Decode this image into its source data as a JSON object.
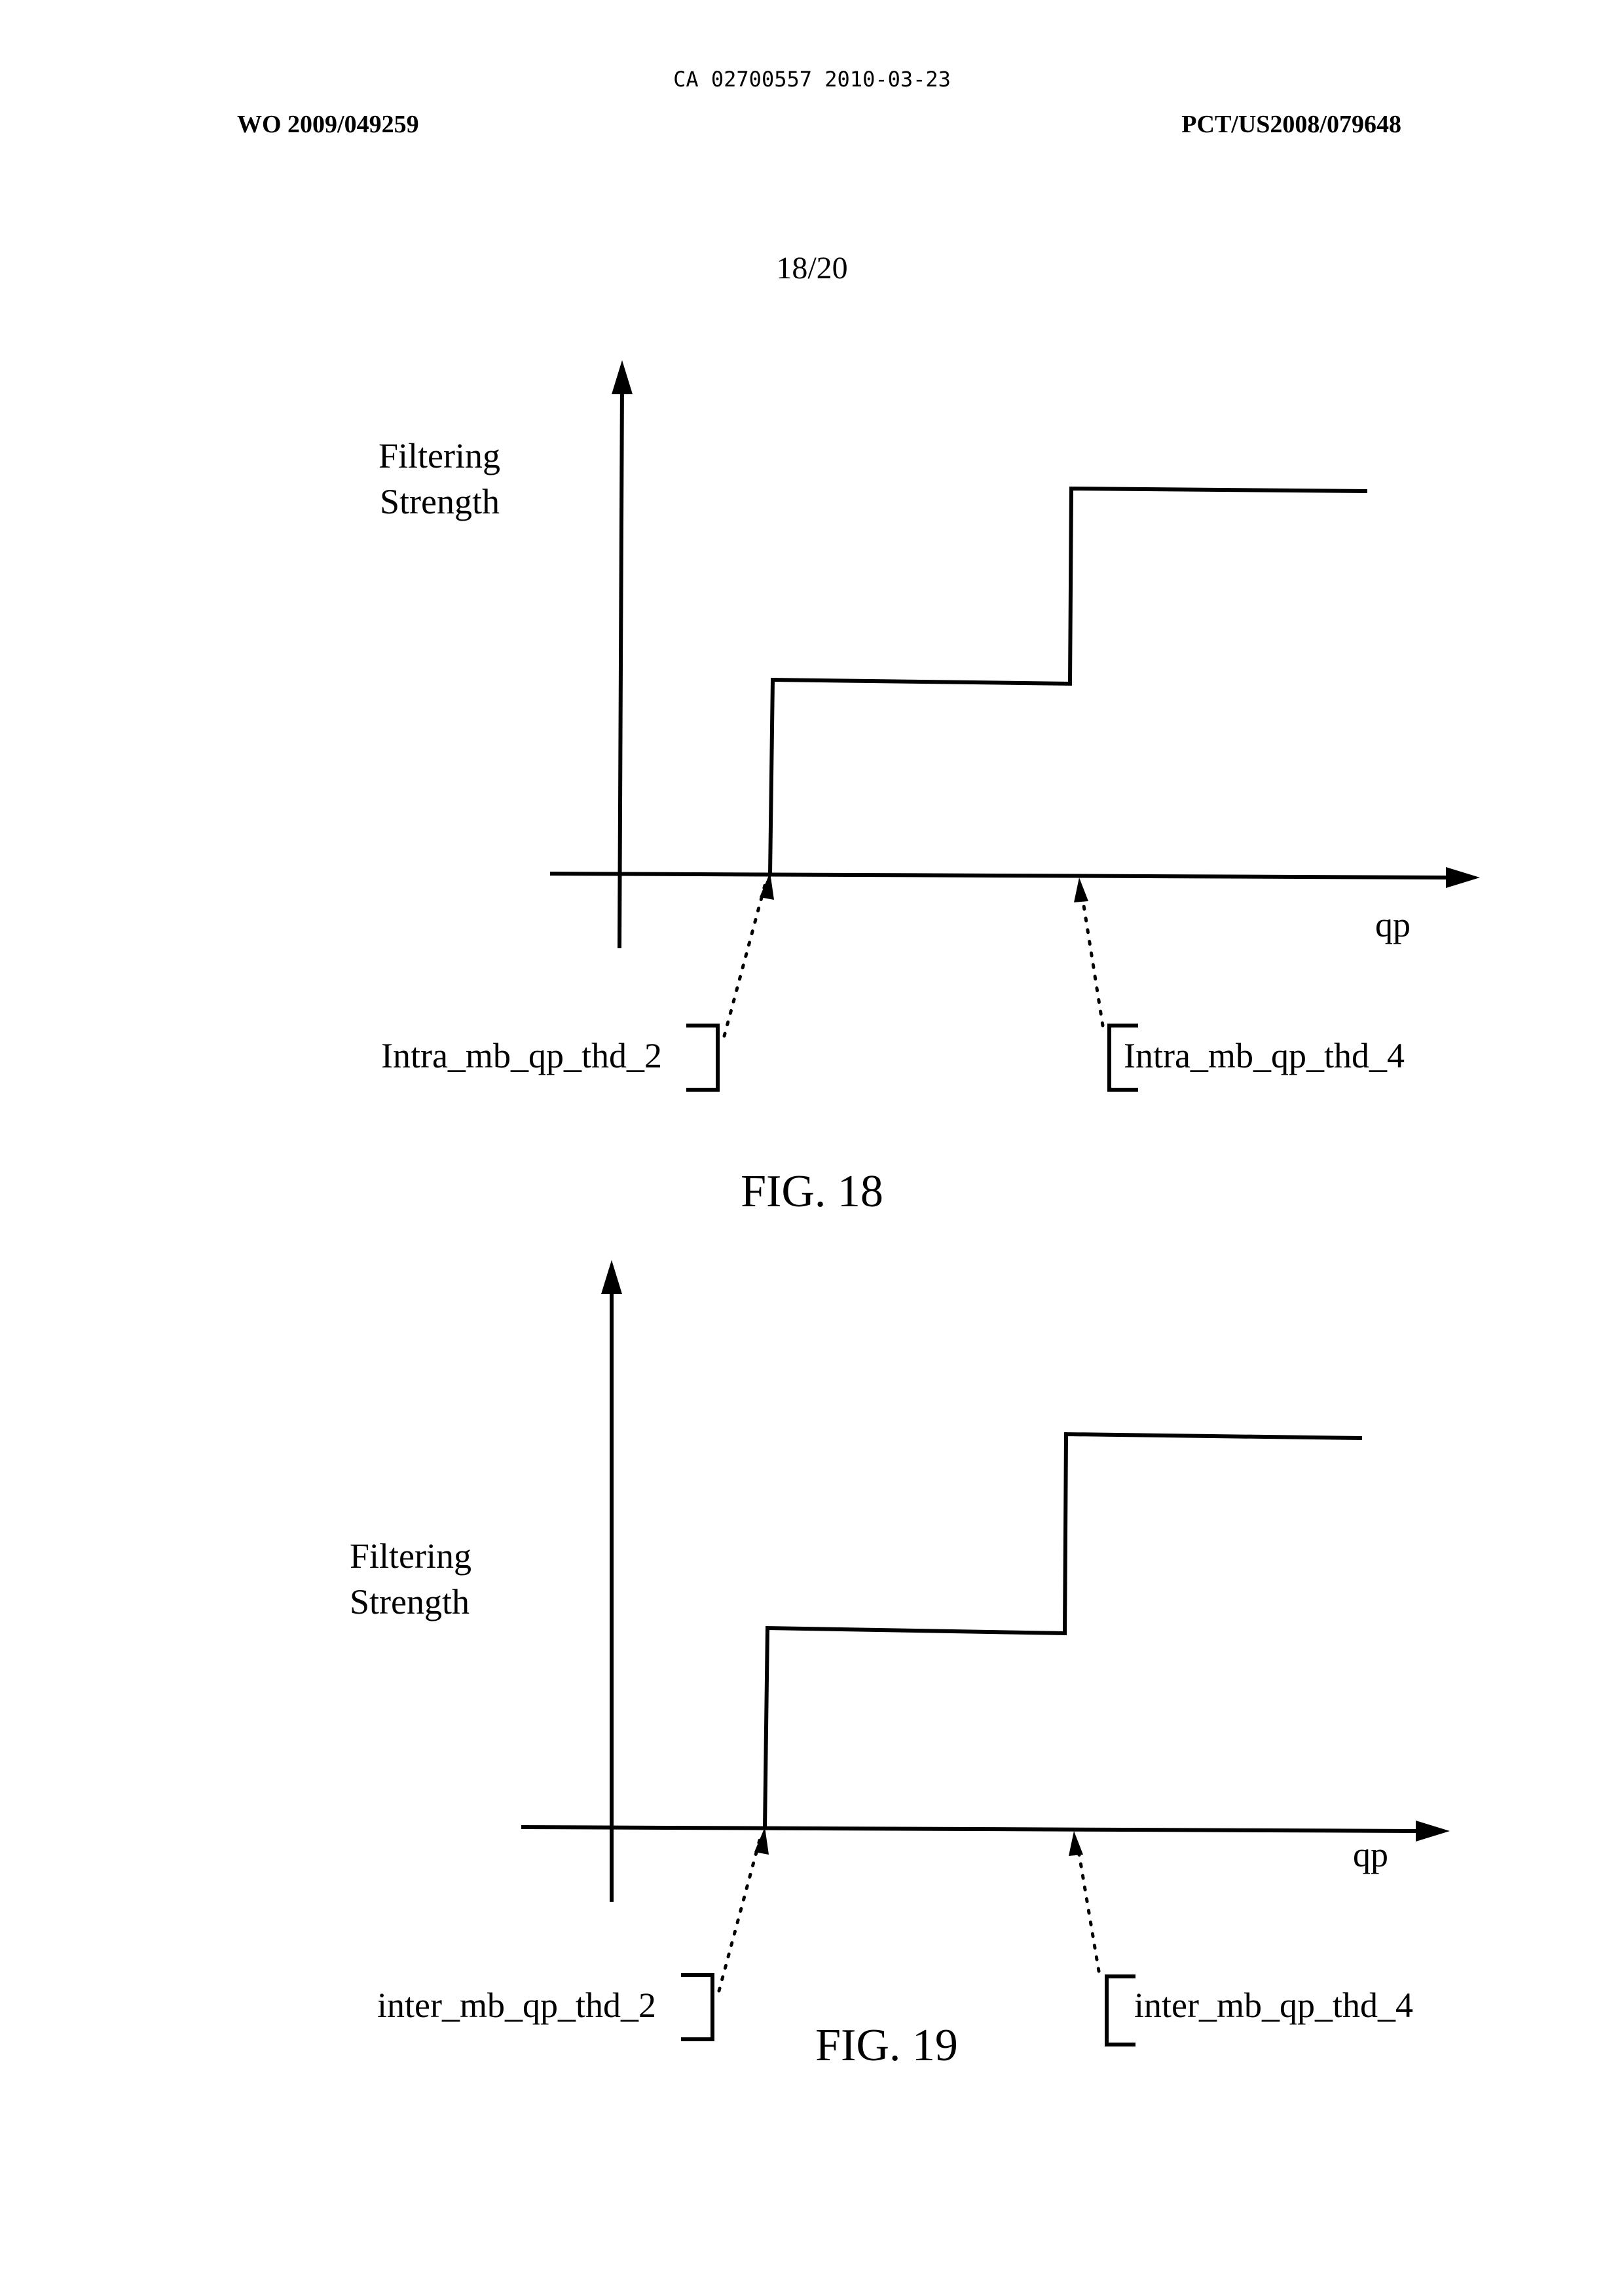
{
  "header": {
    "ca_line": "CA 02700557 2010-03-23",
    "publication_number": "WO 2009/049259",
    "application_number": "PCT/US2008/079648",
    "sheet_number": "18/20"
  },
  "figures": [
    {
      "caption": "FIG. 18",
      "y_label_line1": "Filtering",
      "y_label_line2": "Strength",
      "x_label": "qp",
      "threshold_left": "Intra_mb_qp_thd_2",
      "threshold_right": "Intra_mb_qp_thd_4"
    },
    {
      "caption": "FIG. 19",
      "y_label_line1": "Filtering",
      "y_label_line2": "Strength",
      "x_label": "qp",
      "threshold_left": "inter_mb_qp_thd_2",
      "threshold_right": "inter_mb_qp_thd_4"
    }
  ]
}
